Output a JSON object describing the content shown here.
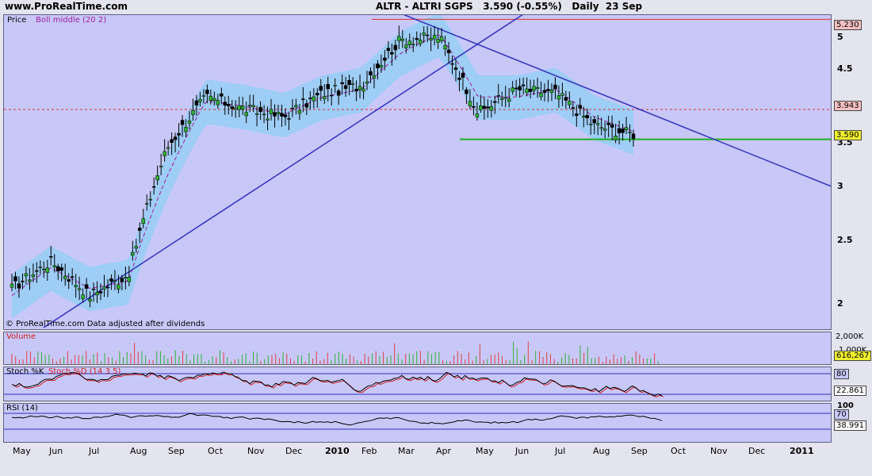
{
  "header": {
    "site": "www.ProRealTime.com",
    "title": "ALTR - ALTRI SGPS   3.590 (-0.55%)   Daily  23 Sep"
  },
  "price_panel": {
    "legend_price": "Price",
    "legend_boll": "Boll middle (20 2)",
    "footer": "© ProRealTime.com  Data adjusted after dividends",
    "tag_high": "5.230",
    "tag_mid": "3.943",
    "tag_last": "3.590",
    "y_ticks": [
      "5",
      "4.5",
      "3.5",
      "3",
      "2.5",
      "2"
    ],
    "colors": {
      "background": "#c8c8f8",
      "band": "#9ecdf6",
      "resistance": "#e03030",
      "support": "#20b020",
      "trendline": "#3030c0"
    }
  },
  "volume_panel": {
    "label": "Volume",
    "tick_top": "2,000K",
    "tick_mid": "1,000K",
    "tag": "616,267"
  },
  "stoch_panel": {
    "label_k": "Stoch %K",
    "label_d": "Stoch %D (14 3 5)",
    "level_high": "80",
    "tag": "22.861"
  },
  "rsi_panel": {
    "label": "RSI (14)",
    "tick_top": "100",
    "level_high": "70",
    "tag": "38.991"
  },
  "x_axis": [
    "May",
    "Jun",
    "Jul",
    "Aug",
    "Sep",
    "Oct",
    "Nov",
    "Dec",
    "2010",
    "Feb",
    "Mar",
    "Apr",
    "May",
    "Jun",
    "Jul",
    "Aug",
    "Sep",
    "Oct",
    "Nov",
    "Dec",
    "2011"
  ],
  "chart_data": {
    "type": "line",
    "title": "ALTR - ALTRI SGPS   3.590 (-0.55%)   Daily  23 Sep",
    "x": [
      "2009-05",
      "2009-06",
      "2009-07",
      "2009-08",
      "2009-09",
      "2009-10",
      "2009-11",
      "2009-12",
      "2010-01",
      "2010-02",
      "2010-03",
      "2010-04",
      "2010-05",
      "2010-06",
      "2010-07",
      "2010-08",
      "2010-09"
    ],
    "series": [
      {
        "name": "Price",
        "values": [
          2.25,
          2.45,
          2.2,
          2.35,
          3.5,
          4.1,
          3.95,
          3.85,
          4.15,
          4.25,
          4.9,
          4.95,
          3.9,
          4.2,
          4.15,
          3.75,
          3.65
        ]
      },
      {
        "name": "Boll middle (20 2)",
        "values": [
          2.2,
          2.4,
          2.25,
          2.3,
          3.2,
          4.05,
          3.98,
          3.88,
          4.1,
          4.2,
          4.7,
          5.0,
          4.1,
          4.1,
          4.2,
          3.85,
          3.68
        ]
      }
    ],
    "ylim": [
      1.98,
      5.3
    ],
    "y_scale": "log",
    "levels": {
      "resistance": 5.23,
      "marker": 3.943,
      "support": 3.59
    }
  }
}
